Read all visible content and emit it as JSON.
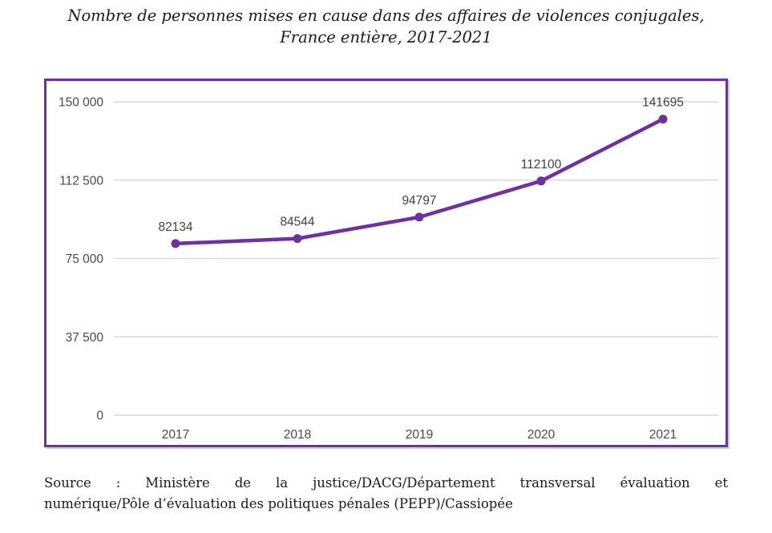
{
  "title": {
    "line1": "Nombre de personnes mises en cause dans des affaires de violences conjugales,",
    "line2": "France entière, 2017-2021"
  },
  "source": {
    "line1": "Source : Ministère de la justice/DACG/Département transversal évaluation et",
    "line2": "numérique/Pôle d’évaluation des politiques pénales (PEPP)/Cassiopée"
  },
  "colors": {
    "line": "#7030A0",
    "marker": "#7030A0",
    "frame_border": "#7030A0",
    "gridline": "#D9D9D9",
    "axis_tick_text": "#4a4a4a",
    "data_label_text": "#404040"
  },
  "chart_data": {
    "type": "line",
    "title": "Nombre de personnes mises en cause dans des affaires de violences conjugales, France entière, 2017-2021",
    "categories": [
      "2017",
      "2018",
      "2019",
      "2020",
      "2021"
    ],
    "values": [
      82134,
      84544,
      94797,
      112100,
      141695
    ],
    "data_labels": [
      "82134",
      "84544",
      "94797",
      "112100",
      "141695"
    ],
    "xlabel": "",
    "ylabel": "",
    "ylim": [
      0,
      150000
    ],
    "yticks": [
      {
        "value": 0,
        "label": "0"
      },
      {
        "value": 37500,
        "label": "37 500"
      },
      {
        "value": 75000,
        "label": "75 000"
      },
      {
        "value": 112500,
        "label": "112 500"
      },
      {
        "value": 150000,
        "label": "150 000"
      }
    ],
    "grid": true,
    "legend": false,
    "series": [
      {
        "name": "Personnes mises en cause",
        "values": [
          82134,
          84544,
          94797,
          112100,
          141695
        ]
      }
    ]
  }
}
